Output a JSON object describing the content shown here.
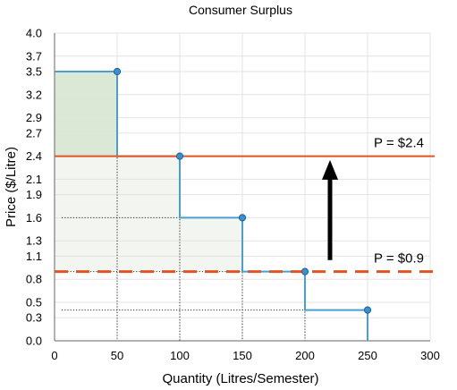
{
  "chart_data": {
    "type": "line",
    "title": "Consumer Surplus",
    "xlabel": "Quantity (Litres/Semester)",
    "ylabel": "Price ($/Litre)",
    "xlim": [
      0,
      300
    ],
    "ylim": [
      0,
      4.0
    ],
    "x_ticks": [
      "0",
      "50",
      "100",
      "150",
      "200",
      "250",
      "300"
    ],
    "y_ticks": [
      "0.0",
      "0.3",
      "0.5",
      "0.8",
      "1.1",
      "1.3",
      "1.6",
      "1.9",
      "2.1",
      "2.4",
      "2.7",
      "2.9",
      "3.2",
      "3.5",
      "3.7",
      "4.0"
    ],
    "grid": true,
    "demand_steps": {
      "color": "#4a9fd0",
      "points": [
        {
          "x": 50,
          "y": 3.5
        },
        {
          "x": 100,
          "y": 2.4
        },
        {
          "x": 150,
          "y": 1.6
        },
        {
          "x": 200,
          "y": 0.9
        },
        {
          "x": 250,
          "y": 0.4
        }
      ]
    },
    "price_lines": [
      {
        "label": "P = $2.4",
        "value": 2.4,
        "style": "solid",
        "color": "#e4531f"
      },
      {
        "label": "P = $0.9",
        "value": 0.9,
        "style": "dashed",
        "color": "#e4531f"
      }
    ],
    "arrow": {
      "x": 220,
      "from": 1.05,
      "to": 2.35,
      "color": "#000000"
    },
    "surplus_shading": {
      "high_price_area_color": "#dce8d6",
      "added_area_color": "#f3f6f0"
    }
  }
}
